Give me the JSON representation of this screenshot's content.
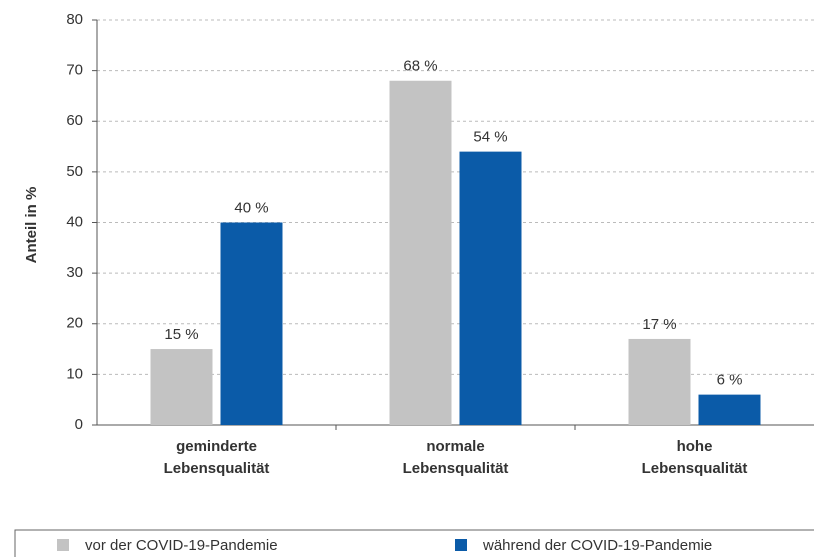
{
  "chart_data": {
    "type": "bar",
    "y_label": "Anteil in %",
    "categories": [
      "geminderte Lebensqualität",
      "normale Lebensqualität",
      "hohe Lebensqualität"
    ],
    "series": [
      {
        "name": "vor der COVID-19-Pandemie",
        "color": "#c3c3c3",
        "values": [
          15,
          68,
          17
        ],
        "value_labels": [
          "15 %",
          "68 %",
          "17 %"
        ]
      },
      {
        "name": "während der COVID-19-Pandemie",
        "color": "#0b5ba8",
        "values": [
          40,
          54,
          6
        ],
        "value_labels": [
          "40 %",
          "54 %",
          "6 %"
        ]
      }
    ],
    "ylim": [
      0,
      80
    ],
    "yticks": [
      0,
      10,
      20,
      30,
      40,
      50,
      60,
      70,
      80
    ],
    "grid": true,
    "legend": "bottom"
  }
}
